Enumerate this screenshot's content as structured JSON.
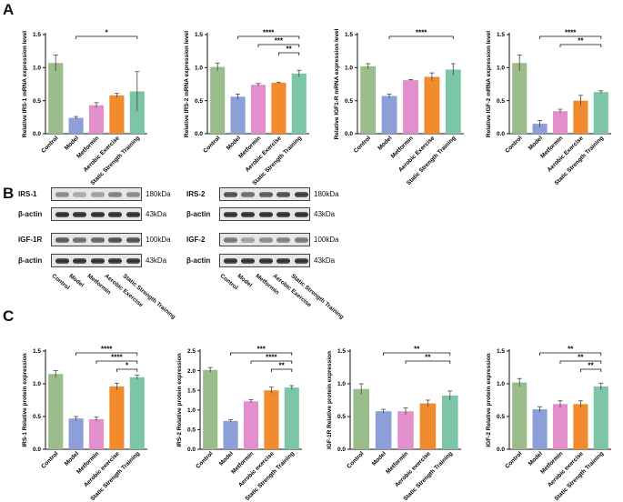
{
  "panel_labels": {
    "a": "A",
    "b": "B",
    "c": "C"
  },
  "groups": [
    "Control",
    "Model",
    "Metformin",
    "Aerobic Exercise",
    "Static Strength Training"
  ],
  "groups_lower": [
    "Control",
    "Model",
    "Metformin",
    "Aerobic exercise",
    "Static Strength Training"
  ],
  "colors": [
    "#9bbd8b",
    "#8c9fd8",
    "#e38fcc",
    "#f28a2e",
    "#7cc5a6"
  ],
  "chart_data": [
    {
      "id": "a1",
      "type": "bar",
      "ylabel": "Relative IRS-1 mRNA expression level",
      "categories": [
        "Control",
        "Model",
        "Metformin",
        "Aerobic Exercise",
        "Static Strength Training"
      ],
      "values": [
        1.07,
        0.24,
        0.43,
        0.58,
        0.64
      ],
      "errors": [
        0.12,
        0.02,
        0.04,
        0.03,
        0.3
      ],
      "ylim": [
        0,
        1.5
      ],
      "ticks": [
        "0.0",
        "0.5",
        "1.0",
        "1.5"
      ],
      "sig": [
        {
          "from": 1,
          "to": 4,
          "label": "*"
        }
      ]
    },
    {
      "id": "a2",
      "type": "bar",
      "ylabel": "Relative IRS-2 mRNA expression level",
      "categories": [
        "Control",
        "Model",
        "Metformin",
        "Aerobic Exercise",
        "Static Strength Training"
      ],
      "values": [
        1.01,
        0.56,
        0.74,
        0.77,
        0.91
      ],
      "errors": [
        0.06,
        0.04,
        0.02,
        0.01,
        0.05
      ],
      "ylim": [
        0,
        1.5
      ],
      "ticks": [
        "0.0",
        "0.5",
        "1.0",
        "1.5"
      ],
      "sig": [
        {
          "from": 1,
          "to": 4,
          "label": "****"
        },
        {
          "from": 2,
          "to": 4,
          "label": "***"
        },
        {
          "from": 3,
          "to": 4,
          "label": "**"
        }
      ]
    },
    {
      "id": "a3",
      "type": "bar",
      "ylabel": "Relative IGF1-R mRNA expression level",
      "categories": [
        "Control",
        "Model",
        "Metformin",
        "Aerobic Exercise",
        "Static Strength Training"
      ],
      "values": [
        1.02,
        0.57,
        0.81,
        0.86,
        0.97
      ],
      "errors": [
        0.04,
        0.03,
        0.01,
        0.06,
        0.09
      ],
      "ylim": [
        0,
        1.5
      ],
      "ticks": [
        "0.0",
        "0.5",
        "1.0",
        "1.5"
      ],
      "sig": [
        {
          "from": 1,
          "to": 4,
          "label": "****"
        }
      ]
    },
    {
      "id": "a4",
      "type": "bar",
      "ylabel": "Relative IGF-2 mRNA expression level",
      "categories": [
        "Control",
        "Model",
        "Metformin",
        "Aerobic Exercise",
        "Static Strength Training"
      ],
      "values": [
        1.07,
        0.15,
        0.34,
        0.5,
        0.63
      ],
      "errors": [
        0.12,
        0.05,
        0.03,
        0.08,
        0.02
      ],
      "ylim": [
        0,
        1.5
      ],
      "ticks": [
        "0.0",
        "0.5",
        "1.0",
        "1.5"
      ],
      "sig": [
        {
          "from": 1,
          "to": 4,
          "label": "****"
        },
        {
          "from": 2,
          "to": 4,
          "label": "**"
        }
      ]
    },
    {
      "id": "c1",
      "type": "bar",
      "ylabel": "IRS-1 Relative protein expression",
      "categories": [
        "Control",
        "Model",
        "Metformin",
        "Aerobic exercise",
        "Static Strength Training"
      ],
      "values": [
        1.15,
        0.47,
        0.46,
        0.96,
        1.1
      ],
      "errors": [
        0.05,
        0.03,
        0.03,
        0.05,
        0.03
      ],
      "ylim": [
        0,
        1.5
      ],
      "ticks": [
        "0.0",
        "0.5",
        "1.0",
        "1.5"
      ],
      "sig": [
        {
          "from": 1,
          "to": 4,
          "label": "****"
        },
        {
          "from": 2,
          "to": 4,
          "label": "****"
        },
        {
          "from": 3,
          "to": 4,
          "label": "*"
        }
      ]
    },
    {
      "id": "c2",
      "type": "bar",
      "ylabel": "IRS-2 Relative protein expression",
      "categories": [
        "Control",
        "Model",
        "Metformin",
        "Aerobic exercise",
        "Static Strength Training"
      ],
      "values": [
        2.02,
        0.72,
        1.22,
        1.5,
        1.57
      ],
      "errors": [
        0.06,
        0.03,
        0.04,
        0.08,
        0.05
      ],
      "ylim": [
        0,
        2.5
      ],
      "ticks": [
        "0.0",
        "0.5",
        "1.0",
        "1.5",
        "2.0",
        "2.5"
      ],
      "sig": [
        {
          "from": 1,
          "to": 4,
          "label": "***"
        },
        {
          "from": 2,
          "to": 4,
          "label": "****"
        },
        {
          "from": 3,
          "to": 4,
          "label": "**"
        }
      ]
    },
    {
      "id": "c3",
      "type": "bar",
      "ylabel": "IGF-1R Relative protein expression",
      "categories": [
        "Control",
        "Model",
        "Metformin",
        "Aerobic exercise",
        "Static Strength Training"
      ],
      "values": [
        0.92,
        0.58,
        0.58,
        0.7,
        0.82
      ],
      "errors": [
        0.08,
        0.03,
        0.05,
        0.05,
        0.07
      ],
      "ylim": [
        0,
        1.5
      ],
      "ticks": [
        "0.0",
        "0.5",
        "1.0",
        "1.5"
      ],
      "sig": [
        {
          "from": 1,
          "to": 4,
          "label": "**"
        },
        {
          "from": 2,
          "to": 4,
          "label": "**"
        }
      ]
    },
    {
      "id": "c4",
      "type": "bar",
      "ylabel": "IGF-2 Relative protein expression",
      "categories": [
        "Control",
        "Model",
        "Metformin",
        "Aerobic exercise",
        "Static Strength Training"
      ],
      "values": [
        1.02,
        0.61,
        0.69,
        0.69,
        0.96
      ],
      "errors": [
        0.06,
        0.04,
        0.05,
        0.05,
        0.05
      ],
      "ylim": [
        0,
        1.5
      ],
      "ticks": [
        "0.0",
        "0.5",
        "1.0",
        "1.5"
      ],
      "sig": [
        {
          "from": 1,
          "to": 4,
          "label": "**"
        },
        {
          "from": 2,
          "to": 4,
          "label": "**"
        },
        {
          "from": 3,
          "to": 4,
          "label": "**"
        }
      ]
    }
  ],
  "blots": {
    "left": [
      {
        "protein": "IRS-1",
        "kda": "180kDa",
        "intensity": [
          0.45,
          0.3,
          0.35,
          0.5,
          0.45
        ]
      },
      {
        "protein": "β-actin",
        "kda": "43kDa",
        "intensity": [
          0.9,
          0.9,
          0.9,
          0.9,
          0.9
        ]
      },
      {
        "protein": "IGF-1R",
        "kda": "100kDa",
        "intensity": [
          0.7,
          0.6,
          0.65,
          0.75,
          0.75
        ]
      },
      {
        "protein": "β-actin",
        "kda": "43kDa",
        "intensity": [
          0.9,
          0.9,
          0.9,
          0.9,
          0.9
        ]
      }
    ],
    "right": [
      {
        "protein": "IRS-2",
        "kda": "180kDa",
        "intensity": [
          0.75,
          0.6,
          0.7,
          0.75,
          0.85
        ]
      },
      {
        "protein": "β-actin",
        "kda": "43kDa",
        "intensity": [
          0.9,
          0.9,
          0.9,
          0.9,
          0.9
        ]
      },
      {
        "protein": "IGF-2",
        "kda": "100kDa",
        "intensity": [
          0.55,
          0.35,
          0.45,
          0.5,
          0.55
        ]
      },
      {
        "protein": "β-actin",
        "kda": "43kDa",
        "intensity": [
          0.9,
          0.9,
          0.9,
          0.9,
          0.9
        ]
      }
    ]
  }
}
